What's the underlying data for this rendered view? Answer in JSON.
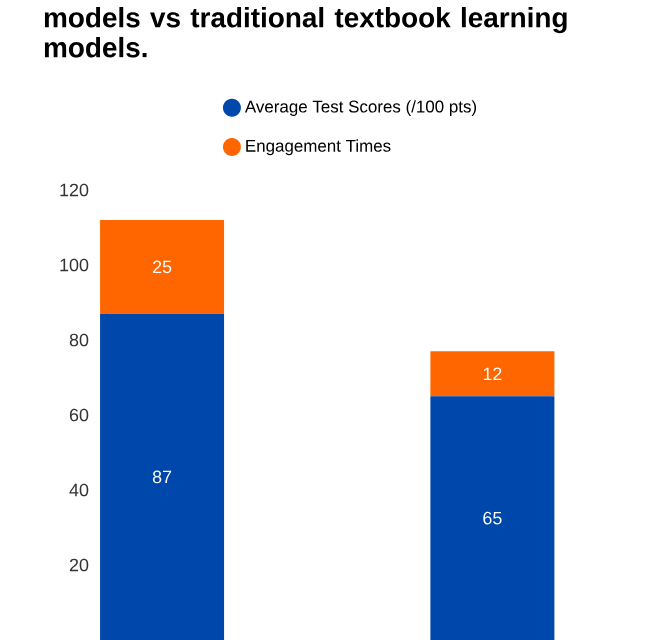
{
  "chart_data": {
    "type": "bar",
    "title": "models vs traditional textbook learning models.",
    "categories": [
      null,
      null
    ],
    "stacked": true,
    "series": [
      {
        "name": "Average Test Scores (/100 pts)",
        "color": "#0047ab",
        "values": [
          87,
          65
        ]
      },
      {
        "name": "Engagement Times",
        "color": "#ff6600",
        "values": [
          25,
          12
        ]
      }
    ],
    "ylim": [
      0,
      120
    ],
    "yticks": [
      20,
      40,
      60,
      80,
      100,
      120
    ],
    "data_labels": true,
    "legend": "top",
    "grid": false
  }
}
